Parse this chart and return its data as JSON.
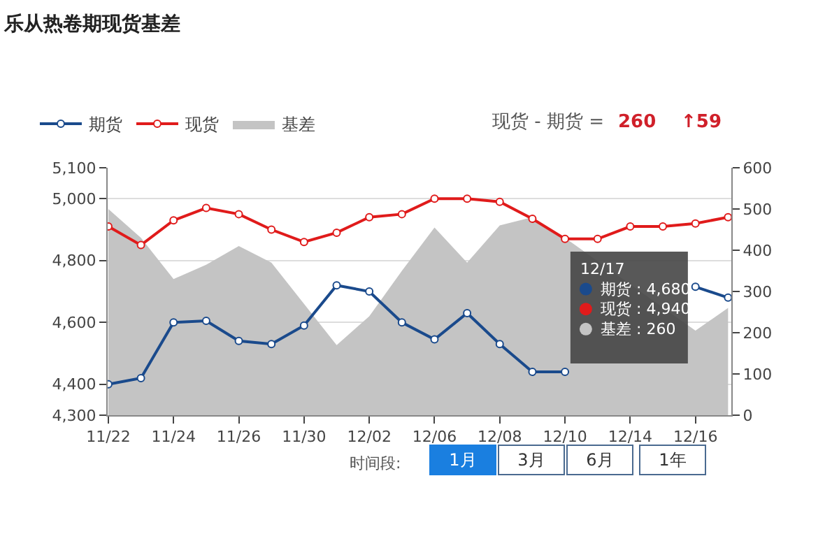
{
  "chart_data": {
    "type": "line",
    "title": "乐从热卷期现货基差",
    "categories": [
      "11/22",
      null,
      "11/24",
      null,
      "11/26",
      null,
      "11/30",
      null,
      "12/02",
      null,
      "12/06",
      null,
      "12/08",
      null,
      "12/10",
      null,
      "12/14",
      null,
      "12/16",
      null
    ],
    "series": [
      {
        "name": "期货",
        "color": "#1a4a8c",
        "values": [
          4400,
          4420,
          4600,
          4605,
          4540,
          4530,
          4590,
          4720,
          4700,
          4600,
          4545,
          4630,
          4530,
          4440,
          4440,
          null,
          null,
          null,
          4715,
          4680
        ]
      },
      {
        "name": "现货",
        "color": "#e01b1b",
        "values": [
          4910,
          4850,
          4930,
          4970,
          4950,
          4900,
          4860,
          4890,
          4940,
          4950,
          5000,
          5000,
          4990,
          4935,
          4870,
          4870,
          4910,
          4910,
          4920,
          4940
        ]
      },
      {
        "name": "基差",
        "type": "area",
        "axis": "y2",
        "marker": "none",
        "color": "#c4c4c4",
        "values": [
          500,
          430,
          330,
          365,
          410,
          370,
          270,
          170,
          240,
          350,
          455,
          370,
          460,
          480,
          430,
          null,
          null,
          null,
          205,
          260
        ]
      }
    ],
    "ylim": [
      4300,
      5100
    ],
    "yticks": [
      {
        "value": 4300,
        "label": "4,300"
      },
      {
        "value": 4400,
        "label": "4,400"
      },
      {
        "value": 4600,
        "label": "4,600"
      },
      {
        "value": 4800,
        "label": "4,800"
      },
      {
        "value": 5000,
        "label": "5,000"
      },
      {
        "value": 5100,
        "label": "5,100"
      }
    ],
    "y2lim": [
      0,
      600
    ],
    "y2ticks": [
      0,
      100,
      200,
      300,
      400,
      500,
      600
    ],
    "grid": "y",
    "legend": "top left",
    "marker": "circle",
    "line_style": "solid",
    "annotations": [
      "现货 - 期货 =",
      "260",
      "↑59",
      {
        "text": "12/17\n期货 : 4,680\n现货 : 4,940\n基差 : 260"
      },
      "时间段:",
      "1月",
      "3月",
      "6月",
      "1年"
    ]
  }
}
